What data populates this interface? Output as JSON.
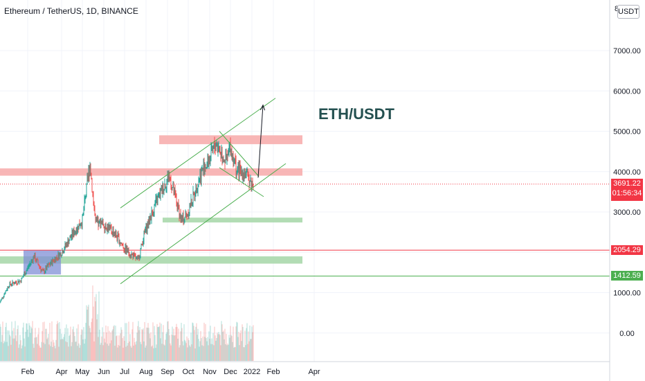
{
  "header": {
    "symbol_title": "Ethereum / TetherUS, 1D, BINANCE",
    "currency_button": "USDT",
    "scale_flag": "8"
  },
  "chart_data": {
    "type": "candlestick",
    "title": "ETH/USDT",
    "x_tick_labels": [
      "Feb",
      "Apr",
      "May",
      "Jun",
      "Jul",
      "Aug",
      "Sep",
      "Oct",
      "Nov",
      "Dec",
      "2022",
      "Feb",
      "Apr"
    ],
    "y_ticks": [
      0,
      1000,
      2000,
      3000,
      4000,
      5000,
      6000,
      7000
    ],
    "y_tick_labels": [
      "0.00",
      "1000.00",
      "",
      "3000.00",
      "4000.00",
      "5000.00",
      "6000.00",
      "7000.00"
    ],
    "ylim": [
      -700,
      8200
    ],
    "grid": true,
    "current_price": 3691.22,
    "current_price_label": "3691.22",
    "countdown_label": "01:56:34",
    "horizontal_levels": [
      {
        "price": 2054.29,
        "label": "2054.29",
        "color": "#f23645"
      },
      {
        "price": 1412.59,
        "label": "1412.59",
        "color": "#4caf50"
      }
    ],
    "zones": [
      {
        "kind": "resistance",
        "from_date": "2021-08-20",
        "to_date": "2022-03-15",
        "low": 4680,
        "high": 4900,
        "color": "#f7a9a9"
      },
      {
        "kind": "resistance",
        "from_date": "2021-01-01",
        "to_date": "2022-03-15",
        "low": 3900,
        "high": 4080,
        "color": "#f7a9a9"
      },
      {
        "kind": "support",
        "from_date": "2021-08-25",
        "to_date": "2022-03-15",
        "low": 2740,
        "high": 2860,
        "color": "#a5d6a7"
      },
      {
        "kind": "support",
        "from_date": "2021-01-01",
        "to_date": "2022-03-15",
        "low": 1720,
        "high": 1900,
        "color": "#a5d6a7"
      },
      {
        "kind": "accumulation",
        "from_date": "2021-02-05",
        "to_date": "2021-03-31",
        "low": 1450,
        "high": 2050,
        "color": "#7f8fd6"
      }
    ],
    "trendlines": [
      {
        "name": "channel-upper",
        "from": {
          "date": "2021-06-25",
          "price": 3100
        },
        "to": {
          "date": "2022-02-04",
          "price": 5820
        },
        "color": "#4caf50"
      },
      {
        "name": "channel-lower",
        "from": {
          "date": "2021-06-25",
          "price": 1220
        },
        "to": {
          "date": "2022-02-19",
          "price": 4200
        },
        "color": "#4caf50"
      },
      {
        "name": "wedge-top",
        "from": {
          "date": "2021-11-15",
          "price": 5000
        },
        "to": {
          "date": "2022-01-11",
          "price": 3880
        },
        "color": "#4caf50"
      },
      {
        "name": "wedge-bottom",
        "from": {
          "date": "2021-11-15",
          "price": 4100
        },
        "to": {
          "date": "2022-01-18",
          "price": 3380
        },
        "color": "#4caf50"
      }
    ],
    "projection": {
      "from": {
        "date": "2022-01-10",
        "price": 3850
      },
      "to": {
        "date": "2022-01-17",
        "price": 5650
      },
      "color": "#131722"
    },
    "series": [
      {
        "name": "close",
        "dates": [
          "2021-01-01",
          "2021-01-15",
          "2021-02-01",
          "2021-02-20",
          "2021-03-05",
          "2021-03-20",
          "2021-04-01",
          "2021-04-15",
          "2021-05-01",
          "2021-05-12",
          "2021-05-20",
          "2021-06-01",
          "2021-06-15",
          "2021-07-01",
          "2021-07-20",
          "2021-08-01",
          "2021-08-15",
          "2021-09-03",
          "2021-09-21",
          "2021-10-01",
          "2021-10-20",
          "2021-11-01",
          "2021-11-10",
          "2021-11-25",
          "2021-12-01",
          "2021-12-10",
          "2021-12-20",
          "2022-01-01"
        ],
        "values": [
          740,
          1200,
          1300,
          1900,
          1500,
          1800,
          2000,
          2400,
          2800,
          4200,
          2700,
          2700,
          2500,
          2100,
          1800,
          2600,
          3200,
          3900,
          2800,
          3000,
          4000,
          4300,
          4700,
          4250,
          4600,
          4000,
          4000,
          3691
        ]
      }
    ]
  }
}
